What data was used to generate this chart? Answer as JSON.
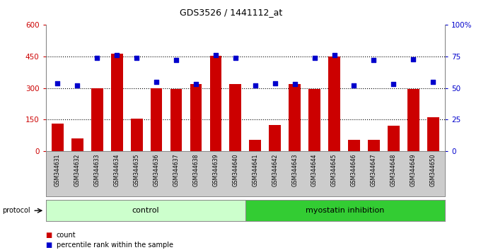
{
  "title": "GDS3526 / 1441112_at",
  "samples": [
    "GSM344631",
    "GSM344632",
    "GSM344633",
    "GSM344634",
    "GSM344635",
    "GSM344636",
    "GSM344637",
    "GSM344638",
    "GSM344639",
    "GSM344640",
    "GSM344641",
    "GSM344642",
    "GSM344643",
    "GSM344644",
    "GSM344645",
    "GSM344646",
    "GSM344647",
    "GSM344648",
    "GSM344649",
    "GSM344650"
  ],
  "counts": [
    130,
    60,
    300,
    465,
    155,
    300,
    295,
    320,
    455,
    320,
    55,
    125,
    320,
    295,
    450,
    55,
    55,
    120,
    295,
    160
  ],
  "percentiles": [
    54,
    52,
    74,
    76,
    74,
    55,
    72,
    53,
    76,
    74,
    52,
    54,
    53,
    74,
    76,
    52,
    72,
    53,
    73,
    55
  ],
  "control_count": 10,
  "myostatin_count": 10,
  "bar_color": "#cc0000",
  "dot_color": "#0000cc",
  "bg_color": "#ffffff",
  "left_axis_color": "#cc0000",
  "right_axis_color": "#0000cc",
  "ylim_left": [
    0,
    600
  ],
  "ylim_right": [
    0,
    100
  ],
  "yticks_left": [
    0,
    150,
    300,
    450,
    600
  ],
  "ytick_labels_left": [
    "0",
    "150",
    "300",
    "450",
    "600"
  ],
  "yticks_right": [
    0,
    25,
    50,
    75,
    100
  ],
  "ytick_labels_right": [
    "0",
    "25",
    "50",
    "75",
    "100%"
  ],
  "control_label": "control",
  "myostatin_label": "myostatin inhibition",
  "protocol_label": "protocol",
  "legend_count_label": "count",
  "legend_pct_label": "percentile rank within the sample",
  "control_bg": "#ccffcc",
  "myostatin_bg": "#33cc33",
  "xlabel_area_bg": "#cccccc"
}
